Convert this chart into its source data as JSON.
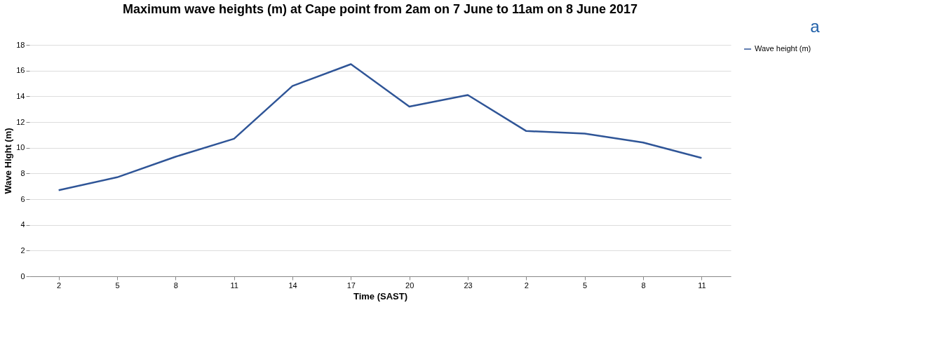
{
  "chart_data": {
    "type": "line",
    "title": "Maximum wave heights (m) at Cape point from 2am  on 7 June to 11am on 8 June 2017",
    "xlabel": "Time (SAST)",
    "ylabel": "Wave Hight (m)",
    "categories": [
      "2",
      "5",
      "8",
      "11",
      "14",
      "17",
      "20",
      "23",
      "2",
      "5",
      "8",
      "11"
    ],
    "series": [
      {
        "name": "Wave height (m)",
        "color": "#2f5597",
        "values": [
          6.7,
          7.7,
          9.3,
          10.7,
          14.8,
          16.5,
          13.2,
          14.1,
          11.3,
          11.1,
          10.4,
          9.2
        ]
      }
    ],
    "ylim": [
      0,
      18
    ],
    "yticks": [
      0,
      2,
      4,
      6,
      8,
      10,
      12,
      14,
      16,
      18
    ],
    "grid": "y",
    "legend": "right",
    "marker": "none",
    "line_style": "solid",
    "annotations": [
      "a"
    ]
  }
}
